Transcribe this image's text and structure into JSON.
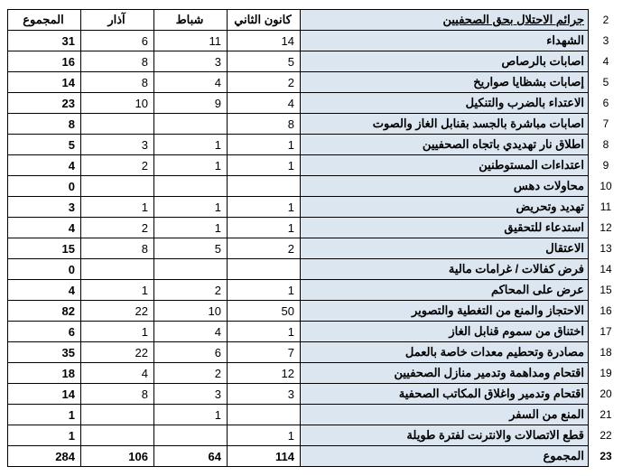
{
  "table": {
    "header": {
      "rownum": "2",
      "label": "جرائم الاحتلال بحق الصحفيين",
      "col1": "كانون الثاني",
      "col2": "شباط",
      "col3": "آذار",
      "col4": "المجموع"
    },
    "rows": [
      {
        "rownum": "3",
        "label": "الشهداء",
        "c1": "14",
        "c2": "11",
        "c3": "6",
        "c4": "31"
      },
      {
        "rownum": "4",
        "label": "اصابات بالرصاص",
        "c1": "5",
        "c2": "3",
        "c3": "8",
        "c4": "16"
      },
      {
        "rownum": "5",
        "label": "إصابات بشظايا صواريخ",
        "c1": "2",
        "c2": "4",
        "c3": "8",
        "c4": "14"
      },
      {
        "rownum": "6",
        "label": "الاعتداء بالضرب والتنكيل",
        "c1": "4",
        "c2": "9",
        "c3": "10",
        "c4": "23"
      },
      {
        "rownum": "7",
        "label": "اصابات مباشرة بالجسد  بقنابل الغاز والصوت",
        "c1": "8",
        "c2": "",
        "c3": "",
        "c4": "8"
      },
      {
        "rownum": "8",
        "label": "اطلاق نار تهديدي باتجاه الصحفيين",
        "c1": "1",
        "c2": "1",
        "c3": "3",
        "c4": "5"
      },
      {
        "rownum": "9",
        "label": "اعتداءات المستوطنين",
        "c1": "1",
        "c2": "1",
        "c3": "2",
        "c4": "4"
      },
      {
        "rownum": "10",
        "label": "محاولات دهس",
        "c1": "",
        "c2": "",
        "c3": "",
        "c4": "0"
      },
      {
        "rownum": "11",
        "label": "تهديد وتحريض",
        "c1": "1",
        "c2": "1",
        "c3": "1",
        "c4": "3"
      },
      {
        "rownum": "12",
        "label": "استدعاء للتحقيق",
        "c1": "1",
        "c2": "1",
        "c3": "2",
        "c4": "4"
      },
      {
        "rownum": "13",
        "label": "الاعتقال",
        "c1": "2",
        "c2": "5",
        "c3": "8",
        "c4": "15"
      },
      {
        "rownum": "14",
        "label": "فرض كفالات / غرامات  مالية",
        "c1": "",
        "c2": "",
        "c3": "",
        "c4": "0"
      },
      {
        "rownum": "15",
        "label": "عرض على المحاكم",
        "c1": "1",
        "c2": "2",
        "c3": "1",
        "c4": "4"
      },
      {
        "rownum": "16",
        "label": "الاحتجاز والمنع من التغطية والتصوير",
        "c1": "50",
        "c2": "10",
        "c3": "22",
        "c4": "82"
      },
      {
        "rownum": "17",
        "label": "اختناق من سموم قنابل الغاز",
        "c1": "1",
        "c2": "4",
        "c3": "1",
        "c4": "6"
      },
      {
        "rownum": "18",
        "label": "مصادرة وتحطيم معدات خاصة بالعمل",
        "c1": "7",
        "c2": "6",
        "c3": "22",
        "c4": "35"
      },
      {
        "rownum": "19",
        "label": "اقتحام ومداهمة وتدمير منازل الصحفيين",
        "c1": "12",
        "c2": "2",
        "c3": "4",
        "c4": "18"
      },
      {
        "rownum": "20",
        "label": "اقتحام وتدمير واغلاق المكاتب الصحفية",
        "c1": "3",
        "c2": "3",
        "c3": "8",
        "c4": "14"
      },
      {
        "rownum": "21",
        "label": "المنع  من السفر",
        "c1": "",
        "c2": "1",
        "c3": "",
        "c4": "1"
      },
      {
        "rownum": "22",
        "label": "قطع الاتصالات والانترنت لفترة طويلة",
        "c1": "1",
        "c2": "",
        "c3": "",
        "c4": "1"
      }
    ],
    "footer": {
      "rownum": "23",
      "label": "المجموع",
      "c1": "114",
      "c2": "64",
      "c3": "106",
      "c4": "284"
    }
  }
}
